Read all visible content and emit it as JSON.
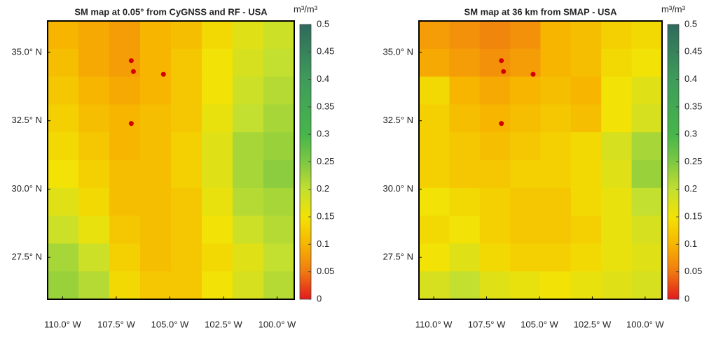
{
  "chart_data": [
    {
      "type": "map",
      "title": "SM map at 0.05° from CyGNSS and RF - USA",
      "colorbar_label": "m³/m³",
      "clim": [
        0,
        0.5
      ],
      "cticks": [
        0,
        0.05,
        0.1,
        0.15,
        0.2,
        0.25,
        0.3,
        0.35,
        0.4,
        0.45,
        0.5
      ],
      "colormap": [
        {
          "value": 0,
          "color": "#e31a1c"
        },
        {
          "value": 0.05,
          "color": "#f07a10"
        },
        {
          "value": 0.1,
          "color": "#f7b500"
        },
        {
          "value": 0.15,
          "color": "#f2e205"
        },
        {
          "value": 0.2,
          "color": "#c3df30"
        },
        {
          "value": 0.25,
          "color": "#7dc843"
        },
        {
          "value": 0.3,
          "color": "#46b64a"
        },
        {
          "value": 0.4,
          "color": "#3e9c5a"
        },
        {
          "value": 0.5,
          "color": "#2f6a5c"
        }
      ],
      "xlim": [
        -110.7,
        -99.2
      ],
      "ylim": [
        25.97,
        36.15
      ],
      "xticks": [
        {
          "value": -110,
          "label": "110.0° W"
        },
        {
          "value": -107.5,
          "label": "107.5° W"
        },
        {
          "value": -105,
          "label": "105.0° W"
        },
        {
          "value": -102.5,
          "label": "102.5° W"
        },
        {
          "value": -100,
          "label": "100.0° W"
        }
      ],
      "yticks": [
        {
          "value": 35,
          "label": "35.0° N"
        },
        {
          "value": 32.5,
          "label": "32.5° N"
        },
        {
          "value": 30,
          "label": "30.0° N"
        },
        {
          "value": 27.5,
          "label": "27.5° N"
        }
      ],
      "sm_grid": [
        [
          0.1,
          0.09,
          0.08,
          0.1,
          0.11,
          0.14,
          0.17,
          0.19
        ],
        [
          0.11,
          0.09,
          0.08,
          0.1,
          0.12,
          0.15,
          0.18,
          0.2
        ],
        [
          0.12,
          0.1,
          0.09,
          0.1,
          0.12,
          0.15,
          0.19,
          0.21
        ],
        [
          0.13,
          0.11,
          0.1,
          0.11,
          0.12,
          0.16,
          0.2,
          0.22
        ],
        [
          0.14,
          0.12,
          0.1,
          0.11,
          0.13,
          0.17,
          0.22,
          0.23
        ],
        [
          0.15,
          0.13,
          0.11,
          0.11,
          0.13,
          0.17,
          0.22,
          0.24
        ],
        [
          0.17,
          0.14,
          0.11,
          0.11,
          0.12,
          0.16,
          0.21,
          0.22
        ],
        [
          0.19,
          0.16,
          0.12,
          0.11,
          0.12,
          0.15,
          0.19,
          0.21
        ],
        [
          0.22,
          0.19,
          0.13,
          0.11,
          0.12,
          0.14,
          0.17,
          0.2
        ],
        [
          0.23,
          0.21,
          0.14,
          0.12,
          0.12,
          0.15,
          0.18,
          0.21
        ]
      ],
      "sites": {
        "color": "#d40000",
        "lon": [
          -106.8,
          -106.7,
          -105.3,
          -106.8
        ],
        "lat": [
          34.7,
          34.3,
          34.2,
          32.4
        ]
      }
    },
    {
      "type": "map",
      "title": "SM map at 36 km from SMAP - USA",
      "colorbar_label": "m³/m³",
      "clim": [
        0,
        0.5
      ],
      "cticks": [
        0,
        0.05,
        0.1,
        0.15,
        0.2,
        0.25,
        0.3,
        0.35,
        0.4,
        0.45,
        0.5
      ],
      "colormap": [
        {
          "value": 0,
          "color": "#e31a1c"
        },
        {
          "value": 0.05,
          "color": "#f07a10"
        },
        {
          "value": 0.1,
          "color": "#f7b500"
        },
        {
          "value": 0.15,
          "color": "#f2e205"
        },
        {
          "value": 0.2,
          "color": "#c3df30"
        },
        {
          "value": 0.25,
          "color": "#7dc843"
        },
        {
          "value": 0.3,
          "color": "#46b64a"
        },
        {
          "value": 0.4,
          "color": "#3e9c5a"
        },
        {
          "value": 0.5,
          "color": "#2f6a5c"
        }
      ],
      "xlim": [
        -110.7,
        -99.2
      ],
      "ylim": [
        25.97,
        36.15
      ],
      "xticks": [
        {
          "value": -110,
          "label": "110.0° W"
        },
        {
          "value": -107.5,
          "label": "107.5° W"
        },
        {
          "value": -105,
          "label": "105.0° W"
        },
        {
          "value": -102.5,
          "label": "102.5° W"
        },
        {
          "value": -100,
          "label": "100.0° W"
        }
      ],
      "yticks": [
        {
          "value": 35,
          "label": "35.0° N"
        },
        {
          "value": 32.5,
          "label": "32.5° N"
        },
        {
          "value": 30,
          "label": "30.0° N"
        },
        {
          "value": 27.5,
          "label": "27.5° N"
        }
      ],
      "sm_grid": [
        [
          0.08,
          0.07,
          0.06,
          0.07,
          0.1,
          0.11,
          0.13,
          0.14
        ],
        [
          0.09,
          0.08,
          0.07,
          0.08,
          0.1,
          0.11,
          0.14,
          0.15
        ],
        [
          0.14,
          0.1,
          0.09,
          0.1,
          0.11,
          0.1,
          0.15,
          0.17
        ],
        [
          0.13,
          0.11,
          0.1,
          0.11,
          0.12,
          0.11,
          0.15,
          0.18
        ],
        [
          0.13,
          0.12,
          0.11,
          0.12,
          0.13,
          0.14,
          0.18,
          0.22
        ],
        [
          0.13,
          0.12,
          0.12,
          0.13,
          0.13,
          0.14,
          0.17,
          0.23
        ],
        [
          0.15,
          0.14,
          0.13,
          0.12,
          0.12,
          0.14,
          0.16,
          0.2
        ],
        [
          0.14,
          0.15,
          0.13,
          0.12,
          0.12,
          0.13,
          0.16,
          0.18
        ],
        [
          0.15,
          0.17,
          0.14,
          0.13,
          0.13,
          0.14,
          0.16,
          0.17
        ],
        [
          0.18,
          0.2,
          0.17,
          0.16,
          0.15,
          0.16,
          0.17,
          0.18
        ]
      ],
      "sites": {
        "color": "#d40000",
        "lon": [
          -106.8,
          -106.7,
          -105.3,
          -106.8
        ],
        "lat": [
          34.7,
          34.3,
          34.2,
          32.4
        ]
      }
    }
  ]
}
